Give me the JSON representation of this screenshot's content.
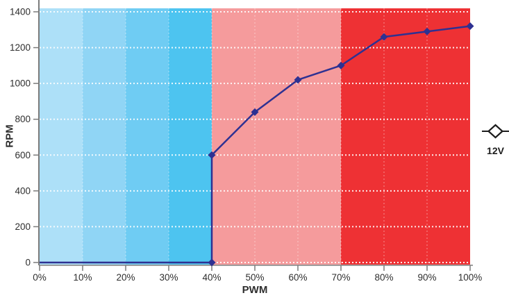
{
  "chart_data": {
    "type": "line",
    "title": "",
    "xlabel": "PWM",
    "ylabel": "RPM",
    "xlim": [
      0,
      100
    ],
    "ylim": [
      0,
      1400
    ],
    "grid": {
      "color": "#ffffff",
      "style": "dotted"
    },
    "x_values": [
      0,
      10,
      20,
      30,
      40,
      50,
      60,
      70,
      80,
      90,
      100
    ],
    "x_tick_labels": [
      "0%",
      "10%",
      "20%",
      "30%",
      "40%",
      "50%",
      "60%",
      "70%",
      "80%",
      "90%",
      "100%"
    ],
    "y_ticks": [
      0,
      200,
      400,
      600,
      800,
      1000,
      1200,
      1400
    ],
    "y_tick_labels": [
      "0",
      "200",
      "400",
      "600",
      "800",
      "1000",
      "1200",
      "1400"
    ],
    "background_bands": [
      {
        "from": 0,
        "to": 10,
        "color": "#ADE0F8"
      },
      {
        "from": 10,
        "to": 20,
        "color": "#90D5F5"
      },
      {
        "from": 20,
        "to": 30,
        "color": "#6FCCF3"
      },
      {
        "from": 30,
        "to": 40,
        "color": "#4DC4F0"
      },
      {
        "from": 40,
        "to": 70,
        "color": "#F59B9C"
      },
      {
        "from": 70,
        "to": 100,
        "color": "#EE3134"
      }
    ],
    "series": [
      {
        "name": "12V",
        "color": "#2E3192",
        "marker": "diamond",
        "points": [
          [
            0,
            0
          ],
          [
            40,
            0
          ],
          [
            40,
            600
          ],
          [
            50,
            840
          ],
          [
            60,
            1020
          ],
          [
            70,
            1100
          ],
          [
            80,
            1260
          ],
          [
            90,
            1290
          ],
          [
            100,
            1320
          ]
        ],
        "marker_points": [
          [
            40,
            0
          ],
          [
            40,
            600
          ],
          [
            50,
            840
          ],
          [
            60,
            1020
          ],
          [
            70,
            1100
          ],
          [
            80,
            1260
          ],
          [
            90,
            1290
          ],
          [
            100,
            1320
          ]
        ]
      }
    ],
    "legend": {
      "label": "12V",
      "position": "right",
      "symbol": "open-diamond-with-line",
      "color": "#1c1c1c"
    },
    "axis_color": "#7b7b7b",
    "tick_label_color": "#2e2e2e"
  }
}
